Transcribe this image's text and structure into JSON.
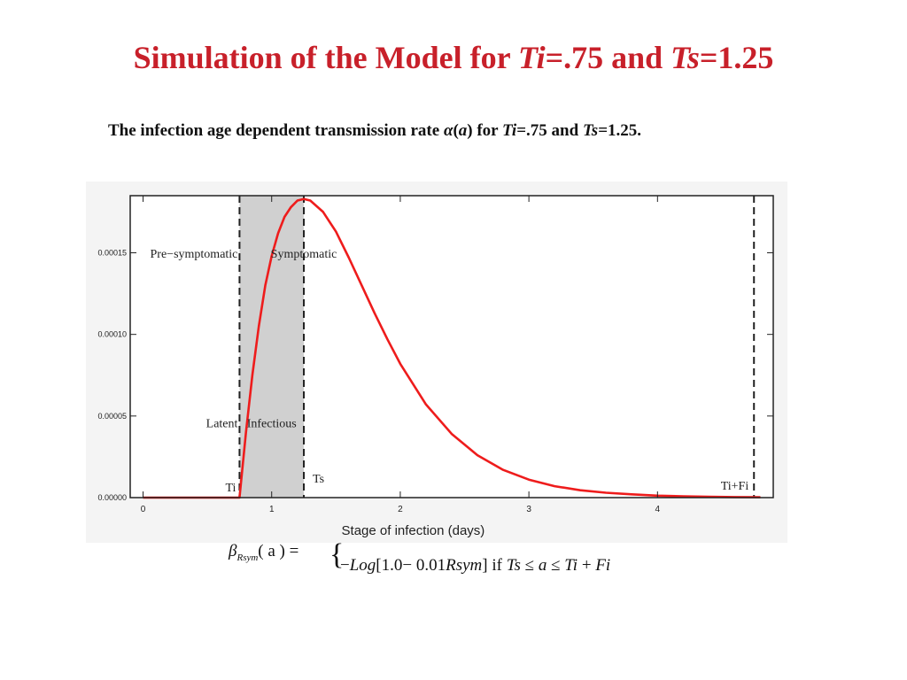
{
  "slide": {
    "title_prefix": "Simulation of the Model for ",
    "title_ti": "Ti",
    "title_mid": "=.75 and ",
    "title_ts": "Ts",
    "title_suffix": "=1.25",
    "subtitle_prefix": "The infection age dependent transmission rate ",
    "subtitle_symbol": "α",
    "subtitle_paren_open": "(",
    "subtitle_var": "a",
    "subtitle_paren_close": ")",
    "subtitle_for": " for ",
    "subtitle_ti": "Ti",
    "subtitle_mid": "=.75 and ",
    "subtitle_ts": "Ts",
    "subtitle_suffix": "=1.25."
  },
  "formula": {
    "lhs_symbol": "β",
    "lhs_sub": "Rsym",
    "lhs_arg": "( a ) =",
    "rhs_prefix": "−",
    "rhs_log": "Log",
    "rhs_args": "[1.0− 0.01",
    "rhs_rsym": "Rsym",
    "rhs_close": "] if ",
    "rhs_cond_ts": "Ts",
    "rhs_cond_le1": " ≤ ",
    "rhs_cond_a": "a",
    "rhs_cond_le2": " ≤ ",
    "rhs_cond_ti": "Ti",
    "rhs_cond_plus": " + ",
    "rhs_cond_fi": "Fi"
  },
  "chart_data": {
    "type": "line",
    "xlabel": "Stage of infection (days)",
    "ylabel": "",
    "xlim": [
      -0.1,
      4.9
    ],
    "ylim": [
      0,
      0.000185
    ],
    "x_ticks": [
      0,
      1,
      2,
      3,
      4
    ],
    "x_tick_labels": [
      "0",
      "1",
      "2",
      "3",
      "4"
    ],
    "y_ticks": [
      0,
      5e-05,
      0.0001,
      0.00015
    ],
    "y_tick_labels": [
      "0.00000",
      "0.00005",
      "0.00010",
      "0.00015"
    ],
    "grid": false,
    "series": [
      {
        "color": "#ee1c1c",
        "x": [
          0,
          0.75,
          0.8,
          0.85,
          0.9,
          0.95,
          1.0,
          1.05,
          1.1,
          1.15,
          1.2,
          1.25,
          1.3,
          1.4,
          1.5,
          1.6,
          1.7,
          1.8,
          1.9,
          2.0,
          2.2,
          2.4,
          2.6,
          2.8,
          3.0,
          3.2,
          3.4,
          3.6,
          3.8,
          4.0,
          4.2,
          4.4,
          4.6,
          4.8
        ],
        "y": [
          0,
          0,
          4e-05,
          7.5e-05,
          0.000105,
          0.00013,
          0.000148,
          0.000162,
          0.000172,
          0.000178,
          0.000182,
          0.000183,
          0.000182,
          0.000175,
          0.000163,
          0.000147,
          0.00013,
          0.000113,
          9.7e-05,
          8.2e-05,
          5.7e-05,
          3.9e-05,
          2.6e-05,
          1.7e-05,
          1.1e-05,
          7e-06,
          4.5e-06,
          3e-06,
          2e-06,
          1.2e-06,
          8e-07,
          5e-07,
          3e-07,
          2e-07
        ]
      }
    ],
    "shaded_region": {
      "x_start": 0.75,
      "x_end": 1.25,
      "color": "#d0d0d0"
    },
    "vertical_lines": [
      {
        "x": 0.75,
        "label": "Ti"
      },
      {
        "x": 1.25,
        "label": "Ts"
      },
      {
        "x": 4.75,
        "label": "Ti+Fi"
      }
    ],
    "annotations": [
      {
        "text": "Pre−symptomatic",
        "x": 0.75,
        "y": 0.000147,
        "anchor": "end"
      },
      {
        "text": "Symptomatic",
        "x": 1.25,
        "y": 0.000147,
        "anchor": "middle"
      },
      {
        "text": "Latent",
        "x": 0.75,
        "y": 4.3e-05,
        "anchor": "end"
      },
      {
        "text": "Infectious",
        "x": 1.0,
        "y": 4.3e-05,
        "anchor": "middle"
      }
    ]
  }
}
